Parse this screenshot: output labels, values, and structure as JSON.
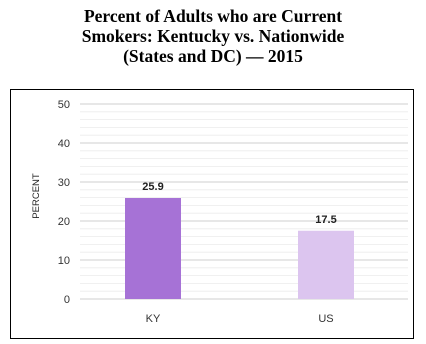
{
  "chart_data": {
    "type": "bar",
    "title_lines": [
      "Percent of Adults who are Current",
      "Smokers: Kentucky vs. Nationwide",
      "(States and DC) — 2015"
    ],
    "categories": [
      "KY",
      "US"
    ],
    "values": [
      25.9,
      17.5
    ],
    "value_labels": [
      "25.9",
      "17.5"
    ],
    "bar_colors": [
      "#a672d6",
      "#dcc5ef"
    ],
    "xlabel": "",
    "ylabel": "PERCENT",
    "ylim": [
      0,
      50
    ],
    "yticks": [
      0,
      10,
      20,
      30,
      40,
      50
    ],
    "grid": true,
    "legend": "none"
  }
}
